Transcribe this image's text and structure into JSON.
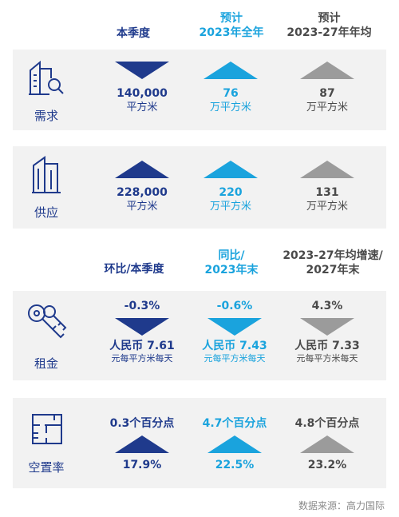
{
  "header1": {
    "col1": "本季度",
    "col2_line1": "预计",
    "col2_line2": "2023年全年",
    "col3_line1": "预计",
    "col3_line2": "2023-27年年均"
  },
  "demand": {
    "label": "需求",
    "current": {
      "value": "140,000",
      "unit": "平方米"
    },
    "forecast2023": {
      "value": "76",
      "unit": "万平方米"
    },
    "avg": {
      "value": "87",
      "unit": "万平方米"
    }
  },
  "supply": {
    "label": "供应",
    "current": {
      "value": "228,000",
      "unit": "平方米"
    },
    "forecast2023": {
      "value": "220",
      "unit": "万平方米"
    },
    "avg": {
      "value": "131",
      "unit": "万平方米"
    }
  },
  "header2": {
    "col1": "环比/本季度",
    "col2_line1": "同比/",
    "col2_line2": "2023年末",
    "col3_line1": "2023-27年均增速/",
    "col3_line2": "2027年末"
  },
  "rent": {
    "label": "租金",
    "current": {
      "change": "-0.3%",
      "value": "人民币 7.61",
      "unit": "元每平方米每天"
    },
    "yoy": {
      "change": "-0.6%",
      "value": "人民币 7.43",
      "unit": "元每平方米每天"
    },
    "avg": {
      "change": "4.3%",
      "value": "人民币 7.33",
      "unit": "元每平方米每天"
    }
  },
  "vacancy": {
    "label": "空置率",
    "current": {
      "change": "0.3个百分点",
      "value": "17.9%"
    },
    "yoy": {
      "change": "4.7个百分点",
      "value": "22.5%"
    },
    "avg": {
      "change": "4.8个百分点",
      "value": "23.2%"
    }
  },
  "source": "数据来源：高力国际",
  "colors": {
    "navy": "#1f3a8c",
    "cyan": "#1aa3dd",
    "gray": "#9b9b9b",
    "panel": "#f2f2f2"
  }
}
